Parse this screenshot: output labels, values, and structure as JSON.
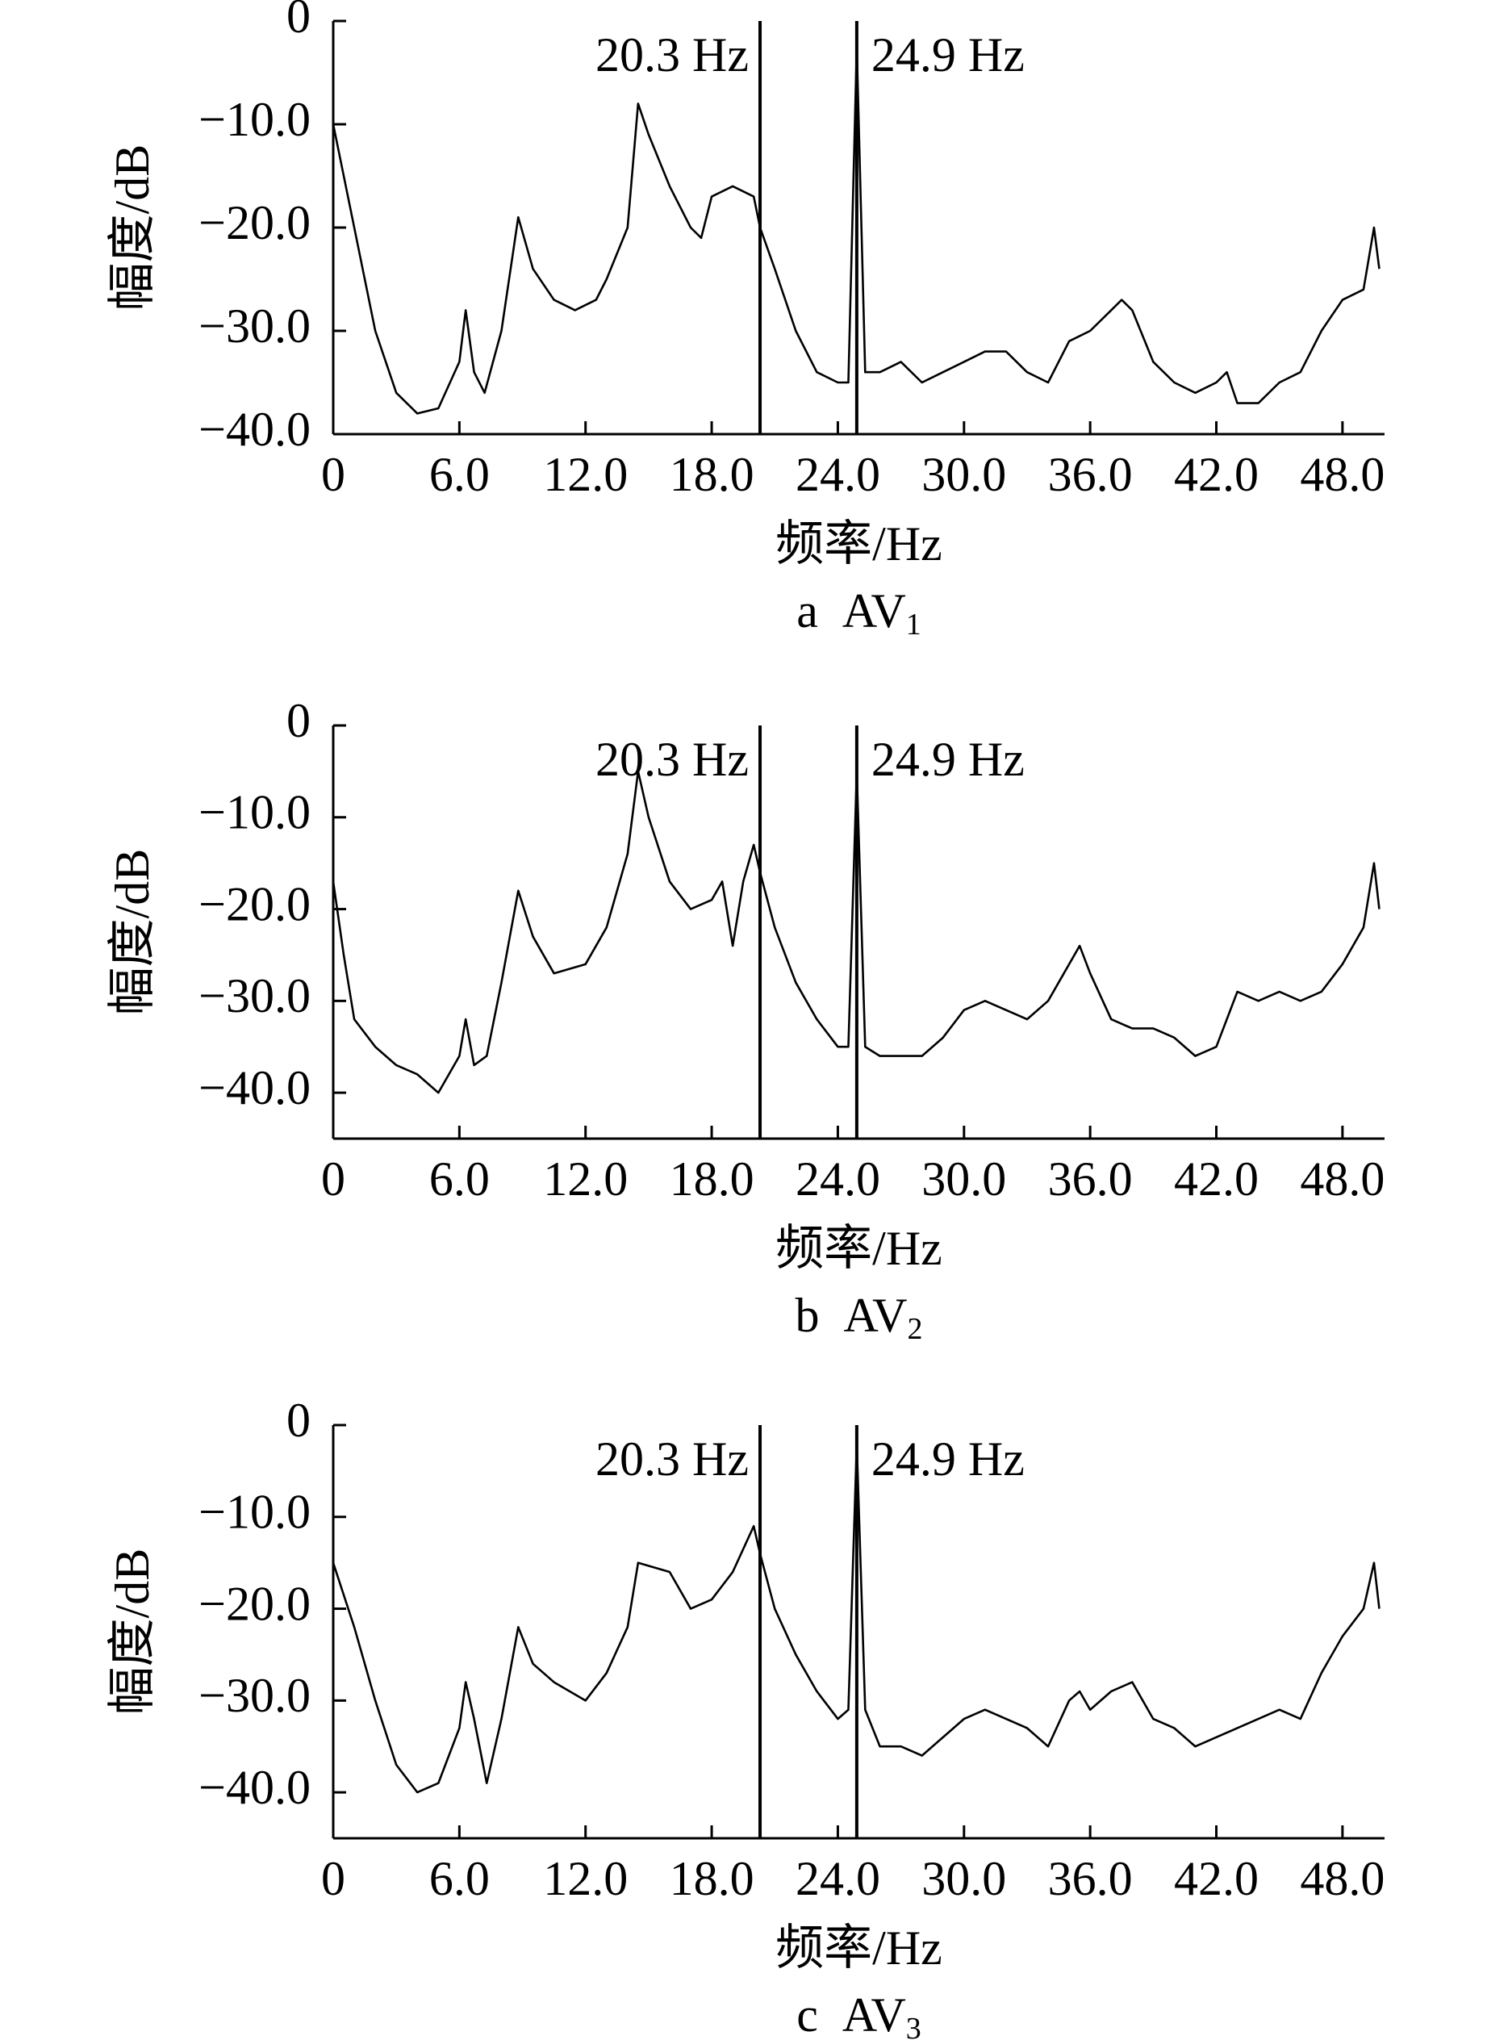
{
  "chart_data": [
    {
      "type": "line",
      "color": "#000000",
      "x_label": "频率/Hz",
      "y_label": "幅度/dB",
      "caption": {
        "letter": "a",
        "name": "AV",
        "sub": "1"
      },
      "xlim": [
        0,
        50
      ],
      "ylim": [
        -40,
        0
      ],
      "xticks": [
        0,
        {
          "value": 6,
          "label": "6.0"
        },
        {
          "value": 12,
          "label": "12.0"
        },
        {
          "value": 18,
          "label": "18.0"
        },
        {
          "value": 24,
          "label": "24.0"
        },
        {
          "value": 30,
          "label": "30.0"
        },
        {
          "value": 36,
          "label": "36.0"
        },
        {
          "value": 42,
          "label": "42.0"
        },
        {
          "value": 48,
          "label": "48.0"
        }
      ],
      "yticks": [
        0,
        {
          "value": -10,
          "label": "−10.0"
        },
        {
          "value": -20,
          "label": "−20.0"
        },
        {
          "value": -30,
          "label": "−30.0"
        },
        {
          "value": -40,
          "label": "−40.0"
        }
      ],
      "annotations": [
        {
          "x": 20.3,
          "label": "20.3 Hz"
        },
        {
          "x": 24.9,
          "label": "24.9 Hz"
        }
      ],
      "x": [
        0,
        1,
        2,
        3,
        4,
        5,
        6,
        6.3,
        6.7,
        7.2,
        8,
        8.8,
        9.5,
        10.5,
        11.5,
        12.5,
        13,
        14,
        14.5,
        15,
        16,
        17,
        17.5,
        18,
        19,
        20,
        20.3,
        21,
        22,
        23,
        24,
        24.5,
        24.9,
        25.3,
        26,
        27,
        28,
        29,
        30,
        31,
        32,
        33,
        34,
        35,
        36,
        37,
        37.5,
        38,
        39,
        40,
        41,
        42,
        42.5,
        43,
        44,
        45,
        46,
        47,
        48,
        49,
        49.5,
        49.75
      ],
      "values": [
        -10,
        -20,
        -30,
        -36,
        -38,
        -37.5,
        -33,
        -28,
        -34,
        -36,
        -30,
        -19,
        -24,
        -27,
        -28,
        -27,
        -25,
        -20,
        -8,
        -11,
        -16,
        -20,
        -21,
        -17,
        -16,
        -17,
        -20,
        -24,
        -30,
        -34,
        -35,
        -35,
        -2.5,
        -34,
        -34,
        -33,
        -35,
        -34,
        -33,
        -32,
        -32,
        -34,
        -35,
        -31,
        -30,
        -28,
        -27,
        -28,
        -33,
        -35,
        -36,
        -35,
        -34,
        -37,
        -37,
        -35,
        -34,
        -30,
        -27,
        -26,
        -20,
        -24
      ]
    },
    {
      "type": "line",
      "color": "#000000",
      "x_label": "频率/Hz",
      "y_label": "幅度/dB",
      "caption": {
        "letter": "b",
        "name": "AV",
        "sub": "2"
      },
      "xlim": [
        0,
        50
      ],
      "ylim": [
        -45,
        0
      ],
      "xticks": [
        0,
        {
          "value": 6,
          "label": "6.0"
        },
        {
          "value": 12,
          "label": "12.0"
        },
        {
          "value": 18,
          "label": "18.0"
        },
        {
          "value": 24,
          "label": "24.0"
        },
        {
          "value": 30,
          "label": "30.0"
        },
        {
          "value": 36,
          "label": "36.0"
        },
        {
          "value": 42,
          "label": "42.0"
        },
        {
          "value": 48,
          "label": "48.0"
        }
      ],
      "yticks": [
        0,
        {
          "value": -10,
          "label": "−10.0"
        },
        {
          "value": -20,
          "label": "−20.0"
        },
        {
          "value": -30,
          "label": "−30.0"
        },
        {
          "value": -40,
          "label": "−40.0"
        }
      ],
      "annotations": [
        {
          "x": 20.3,
          "label": "20.3 Hz"
        },
        {
          "x": 24.9,
          "label": "24.9 Hz"
        }
      ],
      "x": [
        0,
        0.5,
        1,
        2,
        3,
        4,
        5,
        6,
        6.3,
        6.7,
        7.3,
        8,
        8.8,
        9.5,
        10.5,
        12,
        13,
        14,
        14.5,
        15,
        16,
        17,
        18,
        18.5,
        19,
        19.5,
        20,
        20.3,
        21,
        22,
        23,
        24,
        24.5,
        24.9,
        25.3,
        26,
        27,
        28,
        29,
        30,
        31,
        32,
        33,
        34,
        35,
        35.5,
        36,
        37,
        38,
        39,
        40,
        41,
        42,
        43,
        44,
        45,
        46,
        47,
        48,
        49,
        49.5,
        49.75
      ],
      "values": [
        -17,
        -25,
        -32,
        -35,
        -37,
        -38,
        -40,
        -36,
        -32,
        -37,
        -36,
        -28,
        -18,
        -23,
        -27,
        -26,
        -22,
        -14,
        -5,
        -10,
        -17,
        -20,
        -19,
        -17,
        -24,
        -17,
        -13,
        -16,
        -22,
        -28,
        -32,
        -35,
        -35,
        -5,
        -35,
        -36,
        -36,
        -36,
        -34,
        -31,
        -30,
        -31,
        -32,
        -30,
        -26,
        -24,
        -27,
        -32,
        -33,
        -33,
        -34,
        -36,
        -35,
        -29,
        -30,
        -29,
        -30,
        -29,
        -26,
        -22,
        -15,
        -20
      ]
    },
    {
      "type": "line",
      "color": "#000000",
      "x_label": "频率/Hz",
      "y_label": "幅度/dB",
      "caption": {
        "letter": "c",
        "name": "AV",
        "sub": "3"
      },
      "xlim": [
        0,
        50
      ],
      "ylim": [
        -45,
        0
      ],
      "xticks": [
        0,
        {
          "value": 6,
          "label": "6.0"
        },
        {
          "value": 12,
          "label": "12.0"
        },
        {
          "value": 18,
          "label": "18.0"
        },
        {
          "value": 24,
          "label": "24.0"
        },
        {
          "value": 30,
          "label": "30.0"
        },
        {
          "value": 36,
          "label": "36.0"
        },
        {
          "value": 42,
          "label": "42.0"
        },
        {
          "value": 48,
          "label": "48.0"
        }
      ],
      "yticks": [
        0,
        {
          "value": -10,
          "label": "−10.0"
        },
        {
          "value": -20,
          "label": "−20.0"
        },
        {
          "value": -30,
          "label": "−30.0"
        },
        {
          "value": -40,
          "label": "−40.0"
        }
      ],
      "annotations": [
        {
          "x": 20.3,
          "label": "20.3 Hz"
        },
        {
          "x": 24.9,
          "label": "24.9 Hz"
        }
      ],
      "x": [
        0,
        1,
        2,
        3,
        4,
        5,
        6,
        6.3,
        6.7,
        7.3,
        8,
        8.8,
        9.5,
        10.5,
        12,
        13,
        14,
        14.5,
        16,
        17,
        18,
        19,
        20,
        20.3,
        21,
        22,
        23,
        24,
        24.5,
        24.9,
        25.3,
        26,
        27,
        28,
        29,
        30,
        31,
        32,
        33,
        34,
        35,
        35.5,
        36,
        37,
        38,
        39,
        40,
        41,
        42,
        43,
        44,
        45,
        46,
        47,
        48,
        49,
        49.5,
        49.75
      ],
      "values": [
        -15,
        -22,
        -30,
        -37,
        -40,
        -39,
        -33,
        -28,
        -32,
        -39,
        -32,
        -22,
        -26,
        -28,
        -30,
        -27,
        -22,
        -15,
        -16,
        -20,
        -19,
        -16,
        -11,
        -14,
        -20,
        -25,
        -29,
        -32,
        -31,
        -2,
        -31,
        -35,
        -35,
        -36,
        -34,
        -32,
        -31,
        -32,
        -33,
        -35,
        -30,
        -29,
        -31,
        -29,
        -28,
        -32,
        -33,
        -35,
        -34,
        -33,
        -32,
        -31,
        -32,
        -27,
        -23,
        -20,
        -15,
        -20
      ]
    }
  ]
}
